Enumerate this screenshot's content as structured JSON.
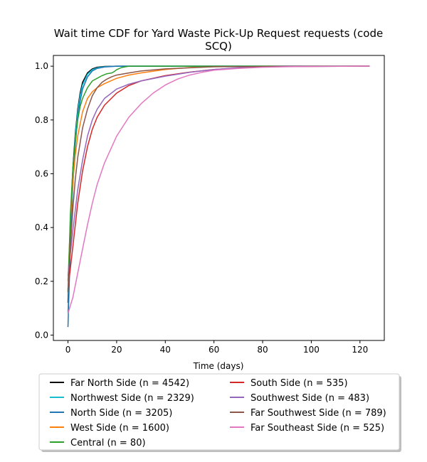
{
  "chart_data": {
    "type": "line",
    "title_line1": "Wait time CDF for Yard Waste Pick-Up Request  requests (code",
    "title_line2": "SCQ)",
    "xlabel": "Time (days)",
    "ylabel": "",
    "xlim": [
      -6,
      130
    ],
    "ylim": [
      -0.02,
      1.04
    ],
    "xticks": [
      0,
      20,
      40,
      60,
      80,
      100,
      120
    ],
    "xtick_labels": [
      "0",
      "20",
      "40",
      "60",
      "80",
      "100",
      "120"
    ],
    "yticks": [
      0.0,
      0.2,
      0.4,
      0.6,
      0.8,
      1.0
    ],
    "ytick_labels": [
      "0.0",
      "0.2",
      "0.4",
      "0.6",
      "0.8",
      "1.0"
    ],
    "grid": false,
    "legend_position": "below",
    "series": [
      {
        "name": "Far North Side (n = 4542)",
        "color": "#000000",
        "x": [
          0,
          1,
          2,
          3,
          4,
          5,
          6,
          8,
          10,
          12,
          15,
          20,
          30,
          40,
          60,
          90,
          124
        ],
        "y": [
          0.12,
          0.42,
          0.62,
          0.75,
          0.84,
          0.9,
          0.94,
          0.975,
          0.99,
          0.996,
          0.999,
          1.0,
          1.0,
          1.0,
          1.0,
          1.0,
          1.0
        ]
      },
      {
        "name": "Northwest Side (n = 2329)",
        "color": "#17becf",
        "x": [
          0,
          1,
          2,
          3,
          4,
          5,
          6,
          8,
          10,
          12,
          15,
          20,
          30,
          60,
          124
        ],
        "y": [
          0.08,
          0.38,
          0.6,
          0.74,
          0.83,
          0.89,
          0.93,
          0.97,
          0.987,
          0.994,
          0.998,
          1.0,
          1.0,
          1.0,
          1.0
        ]
      },
      {
        "name": "North Side (n = 3205)",
        "color": "#1f77b4",
        "x": [
          0,
          1,
          2,
          3,
          4,
          5,
          6,
          8,
          10,
          12,
          15,
          20,
          30,
          60,
          124
        ],
        "y": [
          0.03,
          0.33,
          0.56,
          0.71,
          0.81,
          0.87,
          0.915,
          0.96,
          0.982,
          0.992,
          0.997,
          1.0,
          1.0,
          1.0,
          1.0
        ]
      },
      {
        "name": "West Side (n = 1600)",
        "color": "#ff7f0e",
        "x": [
          0,
          1,
          2,
          3,
          4,
          6,
          8,
          10,
          12,
          15,
          20,
          25,
          30,
          40,
          50,
          60,
          80,
          124
        ],
        "y": [
          0.2,
          0.42,
          0.57,
          0.67,
          0.74,
          0.83,
          0.88,
          0.905,
          0.92,
          0.935,
          0.955,
          0.967,
          0.975,
          0.988,
          0.995,
          0.998,
          1.0,
          1.0
        ]
      },
      {
        "name": "Central (n = 80)",
        "color": "#2ca02c",
        "x": [
          0,
          1,
          2,
          3,
          4,
          5,
          6,
          8,
          10,
          12,
          14,
          16,
          18,
          19,
          20,
          22,
          25,
          30,
          60,
          124
        ],
        "y": [
          0.16,
          0.45,
          0.62,
          0.72,
          0.8,
          0.85,
          0.88,
          0.92,
          0.945,
          0.955,
          0.965,
          0.972,
          0.975,
          0.98,
          0.987,
          0.995,
          1.0,
          1.0,
          1.0,
          1.0
        ]
      },
      {
        "name": "South Side (n = 535)",
        "color": "#d62728",
        "x": [
          0,
          2,
          4,
          6,
          8,
          10,
          12,
          15,
          20,
          25,
          30,
          40,
          50,
          60,
          70,
          80,
          90,
          124
        ],
        "y": [
          0.17,
          0.33,
          0.49,
          0.61,
          0.7,
          0.765,
          0.81,
          0.855,
          0.9,
          0.928,
          0.945,
          0.965,
          0.978,
          0.988,
          0.993,
          0.997,
          0.999,
          1.0
        ]
      },
      {
        "name": "Southwest Side (n = 483)",
        "color": "#9467bd",
        "x": [
          0,
          2,
          4,
          6,
          8,
          10,
          12,
          15,
          20,
          25,
          30,
          40,
          50,
          60,
          70,
          80,
          90,
          124
        ],
        "y": [
          0.22,
          0.39,
          0.54,
          0.65,
          0.74,
          0.8,
          0.84,
          0.88,
          0.915,
          0.933,
          0.945,
          0.963,
          0.977,
          0.988,
          0.994,
          0.998,
          1.0,
          1.0
        ]
      },
      {
        "name": "Far Southwest Side (n = 789)",
        "color": "#8c564b",
        "x": [
          0,
          1,
          2,
          3,
          4,
          6,
          8,
          10,
          12,
          14,
          16,
          18,
          20,
          25,
          30,
          40,
          50,
          60,
          124
        ],
        "y": [
          0.16,
          0.33,
          0.47,
          0.58,
          0.66,
          0.77,
          0.84,
          0.89,
          0.92,
          0.94,
          0.952,
          0.961,
          0.967,
          0.975,
          0.982,
          0.99,
          0.994,
          0.998,
          1.0
        ]
      },
      {
        "name": "Far Southeast Side (n = 525)",
        "color": "#e377c2",
        "x": [
          0,
          2,
          4,
          6,
          8,
          10,
          12,
          15,
          20,
          25,
          30,
          35,
          40,
          45,
          50,
          55,
          60,
          70,
          80,
          90,
          100,
          124
        ],
        "y": [
          0.08,
          0.14,
          0.23,
          0.32,
          0.41,
          0.49,
          0.56,
          0.64,
          0.74,
          0.81,
          0.86,
          0.9,
          0.93,
          0.952,
          0.967,
          0.977,
          0.985,
          0.992,
          0.996,
          0.998,
          0.999,
          1.0
        ]
      }
    ]
  }
}
